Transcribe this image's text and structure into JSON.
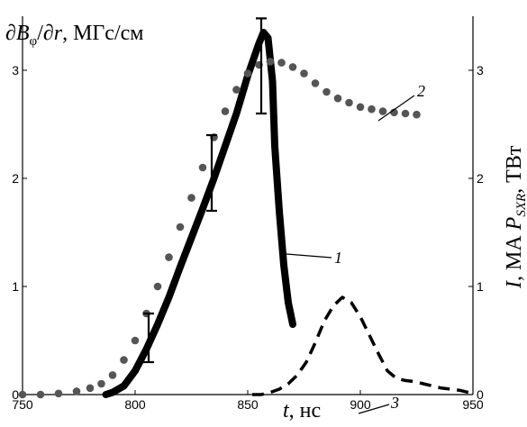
{
  "chart_data": {
    "type": "line",
    "title": "",
    "xlabel": {
      "symbol": "t",
      "unit": ", нс"
    },
    "ylabel_left": {
      "prefix": "∂B",
      "sub": "φ",
      "mid": "/∂",
      "var": "r",
      "unit": ", МГс/см"
    },
    "ylabel_right": {
      "i": "I",
      "mid": ", МА ",
      "p": "P",
      "sub": "SXR",
      "unit": ", ТВт"
    },
    "xlim": [
      750,
      950
    ],
    "ylim": [
      0,
      3.5
    ],
    "x_ticks": [
      750,
      800,
      850,
      900,
      950
    ],
    "y_ticks": [
      0,
      1,
      2,
      3
    ],
    "grid": false,
    "series": [
      {
        "label": "1",
        "style": "thick-solid",
        "x": [
          787,
          790,
          795,
          800,
          805,
          810,
          815,
          820,
          825,
          830,
          835,
          840,
          845,
          850,
          855,
          857,
          859,
          861,
          862,
          864,
          866,
          868,
          870
        ],
        "y": [
          0.0,
          0.02,
          0.08,
          0.22,
          0.42,
          0.65,
          0.9,
          1.18,
          1.45,
          1.72,
          2.0,
          2.3,
          2.6,
          2.95,
          3.25,
          3.35,
          3.3,
          2.9,
          2.3,
          1.7,
          1.2,
          0.85,
          0.65
        ]
      },
      {
        "label": "2",
        "style": "dotted",
        "x": [
          750,
          758,
          766,
          774,
          780,
          785,
          790,
          795,
          800,
          805,
          810,
          815,
          820,
          825,
          830,
          835,
          840,
          845,
          850,
          855,
          860,
          865,
          870,
          875,
          880,
          885,
          890,
          895,
          900,
          905,
          910,
          915,
          920,
          925
        ],
        "y": [
          0.0,
          0.0,
          0.01,
          0.03,
          0.06,
          0.1,
          0.18,
          0.32,
          0.5,
          0.75,
          1.0,
          1.27,
          1.55,
          1.82,
          2.1,
          2.38,
          2.62,
          2.82,
          2.97,
          3.05,
          3.08,
          3.07,
          3.03,
          2.97,
          2.88,
          2.8,
          2.74,
          2.7,
          2.66,
          2.64,
          2.62,
          2.61,
          2.6,
          2.59
        ]
      },
      {
        "label": "3",
        "style": "dashed",
        "x": [
          852,
          856,
          860,
          864,
          868,
          872,
          876,
          880,
          884,
          888,
          892,
          896,
          900,
          904,
          908,
          912,
          916,
          920,
          924,
          928,
          932,
          936,
          940,
          944,
          948
        ],
        "y": [
          0.0,
          0.0,
          0.02,
          0.05,
          0.1,
          0.18,
          0.3,
          0.48,
          0.68,
          0.82,
          0.9,
          0.85,
          0.72,
          0.55,
          0.38,
          0.22,
          0.15,
          0.13,
          0.12,
          0.1,
          0.08,
          0.06,
          0.05,
          0.04,
          0.02
        ]
      }
    ],
    "error_bars": [
      {
        "x": 806,
        "y": 0.55,
        "low": 0.3,
        "high": 0.75
      },
      {
        "x": 834,
        "y": 2.05,
        "low": 1.7,
        "high": 2.4
      },
      {
        "x": 856,
        "y": 3.03,
        "low": 2.6,
        "high": 3.48
      }
    ]
  }
}
